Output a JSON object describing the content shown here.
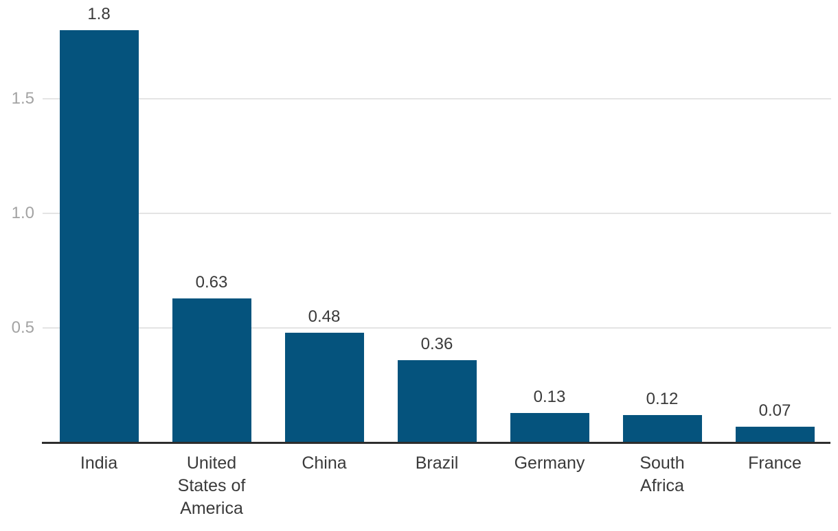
{
  "chart_data": {
    "type": "bar",
    "title": "",
    "xlabel": "",
    "ylabel": "",
    "categories": [
      "India",
      "United States of America",
      "China",
      "Brazil",
      "Germany",
      "South Africa",
      "France"
    ],
    "values": [
      1.8,
      0.63,
      0.48,
      0.36,
      0.13,
      0.12,
      0.07
    ],
    "value_labels": [
      "1.8",
      "0.63",
      "0.48",
      "0.36",
      "0.13",
      "0.12",
      "0.07"
    ],
    "category_label_lines": [
      [
        "India"
      ],
      [
        "United",
        "States of",
        "America"
      ],
      [
        "China"
      ],
      [
        "Brazil"
      ],
      [
        "Germany"
      ],
      [
        "South",
        "Africa"
      ],
      [
        "France"
      ]
    ],
    "ylim": [
      0,
      1.84
    ],
    "yticks": [
      0.5,
      1.0,
      1.5
    ],
    "ytick_labels": [
      "0.5",
      "1.0",
      "1.5"
    ],
    "grid": true,
    "legend": "none",
    "colors": {
      "bar": "#05537d",
      "gridline": "#e4e4e4",
      "axis_line": "#2d2d2d",
      "ytick_text": "#a3a3a3",
      "label_text": "#3a3a3a"
    }
  }
}
